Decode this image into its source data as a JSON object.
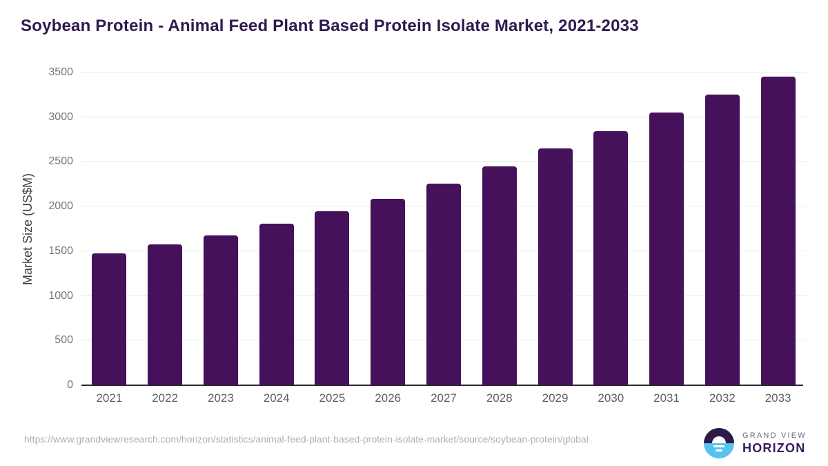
{
  "title": "Soybean Protein - Animal Feed Plant Based Protein Isolate Market, 2021-2033",
  "chart_data": {
    "type": "bar",
    "title": "Soybean Protein - Animal Feed Plant Based Protein Isolate Market, 2021-2033",
    "categories": [
      "2021",
      "2022",
      "2023",
      "2024",
      "2025",
      "2026",
      "2027",
      "2028",
      "2029",
      "2030",
      "2031",
      "2032",
      "2033"
    ],
    "values": [
      1475,
      1575,
      1680,
      1810,
      1950,
      2090,
      2260,
      2450,
      2650,
      2845,
      3050,
      3250,
      3455
    ],
    "xlabel": "",
    "ylabel": "Market Size (US$M)",
    "ylim": [
      0,
      3500
    ],
    "yticks": [
      0,
      500,
      1000,
      1500,
      2000,
      2500,
      3000,
      3500
    ],
    "grid": "horizontal",
    "legend": "none",
    "bar_color": "#45115a"
  },
  "footer": {
    "source_url": "https://www.grandviewresearch.com/horizon/statistics/animal-feed-plant-based-protein-isolate-market/source/soybean-protein/global",
    "logo_line1": "GRAND VIEW",
    "logo_line2": "HORIZON"
  },
  "colors": {
    "bar": "#45115a",
    "title_text": "#2f1a4d",
    "gridline": "#e8e8e8",
    "axis_line": "#2b2b2b",
    "y_tick_text": "#757575",
    "x_tick_text": "#5f5f5f",
    "y_axis_title_text": "#3d3d3d",
    "source_url_text": "#b0b0b0",
    "logo_dark_purple": "#2e1a47",
    "logo_light_blue": "#56c3ef",
    "logo_gray_text": "#6a6a74",
    "logo_purple_text": "#381b59"
  }
}
